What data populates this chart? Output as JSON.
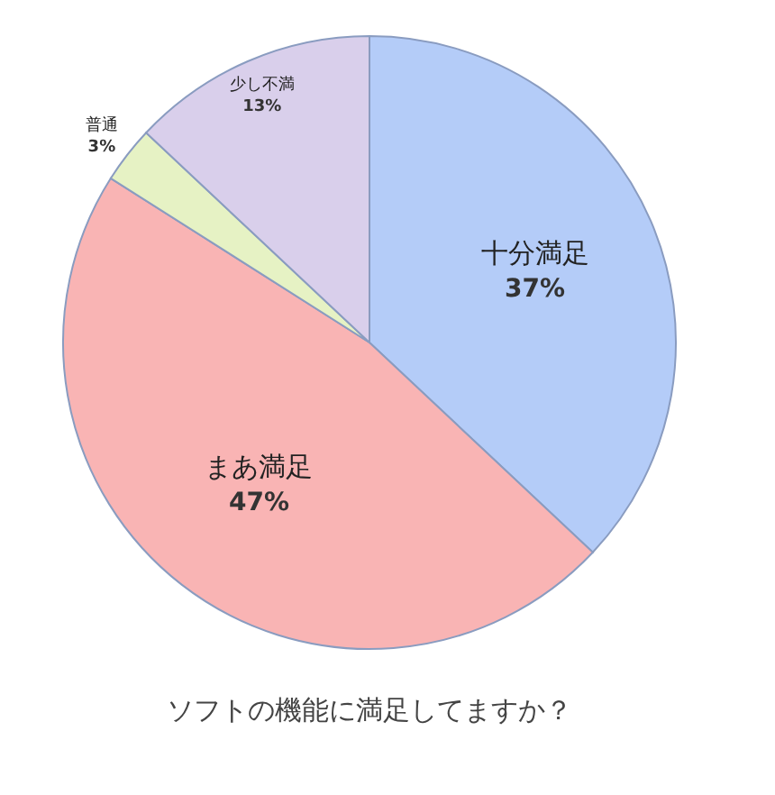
{
  "chart_data": {
    "type": "pie",
    "title": "ソフトの機能に満足してますか？",
    "categories": [
      "十分満足",
      "まあ満足",
      "普通",
      "少し不満"
    ],
    "values": [
      37,
      47,
      3,
      13
    ],
    "colors": [
      "#b4ccf8",
      "#f9b4b4",
      "#e6f2c4",
      "#d9cfeb"
    ],
    "value_labels": [
      "37%",
      "47%",
      "3%",
      "13%"
    ]
  }
}
